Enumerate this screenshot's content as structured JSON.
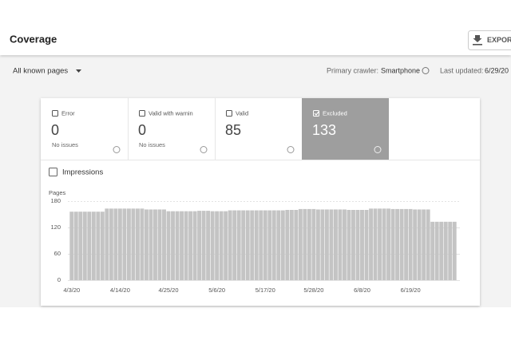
{
  "header": {
    "title": "Coverage",
    "export": "EXPORT"
  },
  "toolbar": {
    "filter": "All known pages",
    "crawler_label": "Primary crawler:",
    "crawler": "Smartphone",
    "updated_label": "Last updated:",
    "updated": "6/29/20"
  },
  "tabs": [
    {
      "label": "Error",
      "count": 0,
      "note": "No issues"
    },
    {
      "label": "Valid with warnin",
      "count": 0,
      "note": "No issues"
    },
    {
      "label": "Valid",
      "count": 85
    },
    {
      "label": "Excluded",
      "count": 133
    }
  ],
  "impressions": "Impressions",
  "chart_data": {
    "type": "bar",
    "y_label": "Pages",
    "color": "#c4c4c4",
    "grid": true,
    "ylim": [
      0,
      180
    ],
    "yticks": [
      0,
      60,
      120,
      180
    ],
    "categories": [
      "4/3/20",
      null,
      null,
      null,
      null,
      null,
      null,
      null,
      null,
      null,
      null,
      "4/14/20",
      null,
      null,
      null,
      null,
      null,
      null,
      null,
      null,
      null,
      null,
      "4/25/20",
      null,
      null,
      null,
      null,
      null,
      null,
      null,
      null,
      null,
      null,
      "5/6/20",
      null,
      null,
      null,
      null,
      null,
      null,
      null,
      null,
      null,
      null,
      "5/17/20",
      null,
      null,
      null,
      null,
      null,
      null,
      null,
      null,
      null,
      null,
      "5/28/20",
      null,
      null,
      null,
      null,
      null,
      null,
      null,
      null,
      null,
      null,
      "6/8/20",
      null,
      null,
      null,
      null,
      null,
      null,
      null,
      null,
      null,
      null,
      "6/19/20",
      null,
      null,
      null,
      null,
      null,
      null,
      null,
      null,
      null,
      null
    ],
    "values": [
      156,
      156,
      156,
      156,
      156,
      156,
      156,
      156,
      163,
      163,
      163,
      163,
      163,
      163,
      163,
      163,
      163,
      161,
      161,
      161,
      161,
      161,
      157,
      157,
      157,
      157,
      157,
      157,
      157,
      158,
      158,
      158,
      157,
      157,
      157,
      157,
      159,
      159,
      159,
      159,
      159,
      159,
      159,
      159,
      159,
      159,
      159,
      159,
      159,
      160,
      160,
      160,
      162,
      162,
      162,
      162,
      161,
      161,
      161,
      161,
      161,
      161,
      161,
      160,
      160,
      160,
      160,
      160,
      163,
      163,
      163,
      163,
      163,
      162,
      162,
      162,
      162,
      162,
      161,
      161,
      161,
      161,
      133,
      133,
      133,
      133,
      133,
      133
    ]
  }
}
